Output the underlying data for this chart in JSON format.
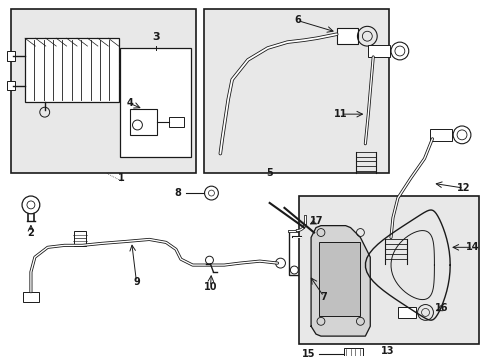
{
  "bg_color": "#ffffff",
  "line_color": "#1a1a1a",
  "box_bg": "#e8e8e8",
  "box_bg2": "#dcdcdc"
}
